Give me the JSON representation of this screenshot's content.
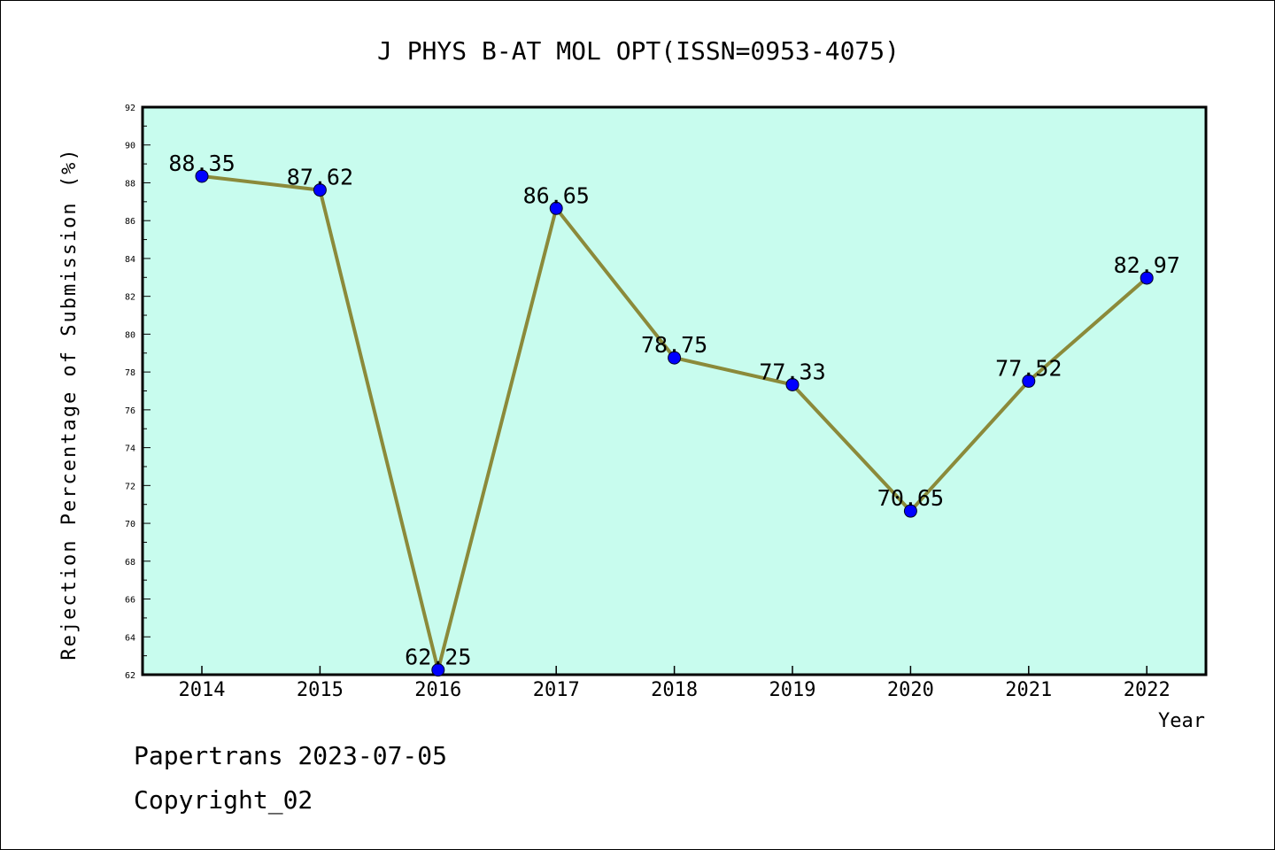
{
  "chart_data": {
    "type": "line",
    "title": "J PHYS B-AT MOL OPT(ISSN=0953-4075)",
    "xlabel": "Year",
    "ylabel": "Rejection Percentage of Submission (%)",
    "categories": [
      "2014",
      "2015",
      "2016",
      "2017",
      "2018",
      "2019",
      "2020",
      "2021",
      "2022"
    ],
    "values": [
      88.35,
      87.62,
      62.25,
      86.65,
      78.75,
      77.33,
      70.65,
      77.52,
      82.97
    ],
    "data_labels": [
      "88.35",
      "87.62",
      "62.25",
      "86.65",
      "78.75",
      "77.33",
      "70.65",
      "77.52",
      "82.97"
    ],
    "ylim": [
      62,
      92
    ],
    "yticks": [
      "62",
      "64",
      "66",
      "68",
      "70",
      "72",
      "74",
      "76",
      "78",
      "80",
      "82",
      "84",
      "86",
      "88",
      "90",
      "92"
    ],
    "grid": false,
    "colors": {
      "plot_bg": "#c8fcee",
      "line": "#8b8a3a",
      "marker": "#0000ff"
    }
  },
  "footer": {
    "line1": "Papertrans 2023-07-05",
    "line2": "Copyright_02"
  }
}
